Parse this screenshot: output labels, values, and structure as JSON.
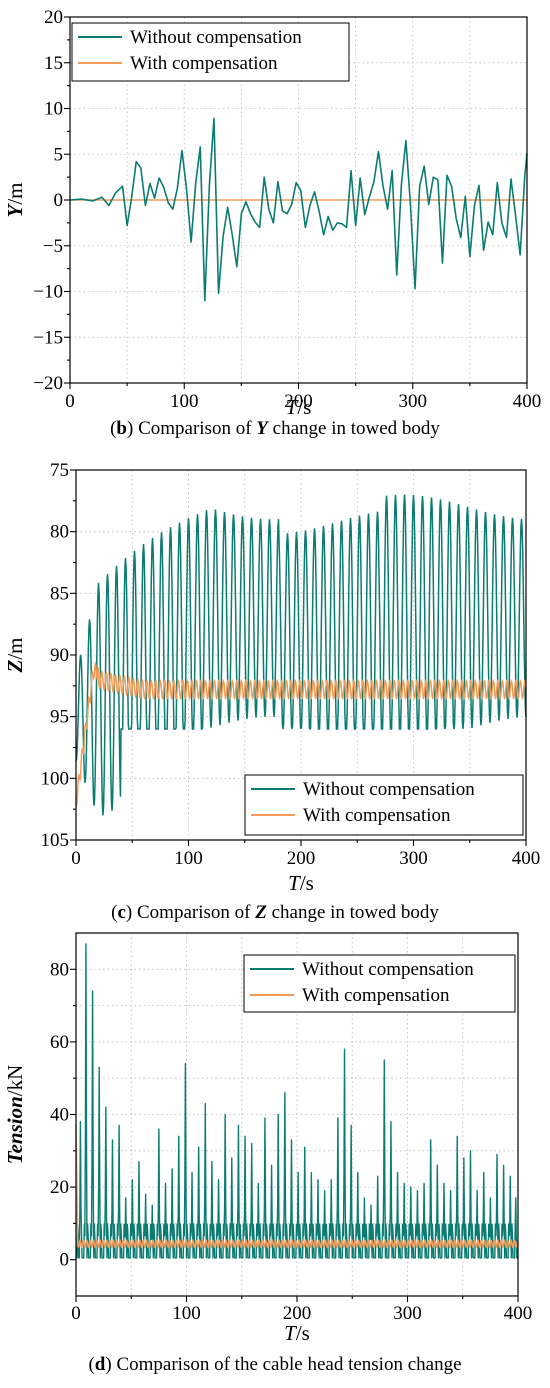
{
  "colors": {
    "without": "#0b7c72",
    "with": "#f39c5a"
  },
  "chart_data": [
    {
      "id": "b",
      "type": "line",
      "xlabel": {
        "var": "T",
        "unit": "/s"
      },
      "ylabel": {
        "var": "Y",
        "unit": "/m"
      },
      "xlim": [
        0,
        400
      ],
      "ylim": [
        -20,
        20
      ],
      "xticks": [
        0,
        100,
        200,
        300,
        400
      ],
      "yticks": [
        20,
        15,
        10,
        5,
        0,
        -5,
        -10,
        -15,
        -20
      ],
      "y_reversed": false,
      "legend": "top-left",
      "caption": {
        "letter": "b",
        "before": " Comparison of ",
        "var": "Y",
        "after": " change in towed body"
      },
      "series": [
        {
          "name": "Without compensation",
          "x": [
            0,
            10,
            20,
            28,
            34,
            40,
            46,
            50,
            54,
            58,
            62,
            66,
            70,
            74,
            78,
            82,
            86,
            90,
            94,
            98,
            102,
            106,
            110,
            114,
            118,
            122,
            126,
            130,
            134,
            138,
            142,
            146,
            150,
            154,
            158,
            162,
            166,
            170,
            174,
            178,
            182,
            186,
            190,
            194,
            198,
            202,
            206,
            210,
            214,
            218,
            222,
            226,
            230,
            234,
            238,
            242,
            246,
            250,
            254,
            258,
            262,
            266,
            270,
            274,
            278,
            282,
            286,
            290,
            294,
            298,
            302,
            306,
            310,
            314,
            318,
            322,
            326,
            330,
            334,
            338,
            342,
            346,
            350,
            354,
            358,
            362,
            366,
            370,
            374,
            378,
            382,
            386,
            390,
            394,
            398,
            400
          ],
          "y": [
            0,
            0.1,
            -0.1,
            0.3,
            -0.6,
            0.8,
            1.5,
            -2.8,
            0.3,
            4.2,
            3.5,
            -0.6,
            1.8,
            0.2,
            2.4,
            1.4,
            -0.3,
            -1.0,
            1.3,
            5.4,
            1.2,
            -4.6,
            1.8,
            5.8,
            -11.0,
            1.6,
            8.9,
            -10.2,
            -4.0,
            -0.8,
            -3.8,
            -7.3,
            -1.5,
            -0.2,
            -1.5,
            -2.4,
            -3.0,
            2.5,
            -1.0,
            -2.5,
            2.0,
            -1.2,
            -1.5,
            -0.5,
            1.9,
            1.0,
            -3.0,
            -0.6,
            0.9,
            -1.2,
            -3.8,
            -1.8,
            -3.3,
            -2.5,
            -2.6,
            -3.0,
            3.2,
            -2.8,
            2.4,
            -1.6,
            0.3,
            2.0,
            5.3,
            1.5,
            -1.0,
            3.2,
            -8.2,
            1.6,
            6.5,
            -0.5,
            -9.7,
            1.5,
            3.7,
            -0.5,
            2.5,
            2.2,
            -6.9,
            2.7,
            1.5,
            -2.0,
            -4.1,
            0.4,
            -6.2,
            -0.6,
            1.6,
            -5.5,
            -2.4,
            -3.8,
            1.9,
            -2.5,
            -4.1,
            2.3,
            -1.7,
            -6.0,
            2.5,
            5.1
          ]
        },
        {
          "name": "With compensation",
          "x": [
            0,
            400
          ],
          "y": [
            0,
            0
          ]
        }
      ]
    },
    {
      "id": "c",
      "type": "line",
      "xlabel": {
        "var": "T",
        "unit": "/s"
      },
      "ylabel": {
        "var": "Z",
        "unit": "/m"
      },
      "xlim": [
        0,
        400
      ],
      "ylim": [
        75,
        105
      ],
      "xticks": [
        0,
        100,
        200,
        300,
        400
      ],
      "yticks": [
        75,
        80,
        85,
        90,
        95,
        100,
        105
      ],
      "y_reversed": true,
      "legend": "bottom-right",
      "caption": {
        "letter": "c",
        "before": " Comparison of ",
        "var": "Z",
        "after": " change in towed body"
      },
      "oscillation": {
        "without": {
          "period_s": 8,
          "center_start": 95,
          "center_end": 87,
          "amp_start": 9,
          "amp_mid": 10,
          "peaks_min": 76,
          "troughs_max": 96
        },
        "with": {
          "period_s": 4,
          "center": 92.8,
          "amp": 0.7,
          "initial": 102,
          "settle_s": 20,
          "overshoot_min": 91.3
        }
      },
      "series": [
        {
          "name": "Without compensation"
        },
        {
          "name": "With compensation"
        }
      ]
    },
    {
      "id": "d",
      "type": "line",
      "xlabel": {
        "var": "T",
        "unit": "/s"
      },
      "ylabel": {
        "var": "Tension",
        "unit": "/kN"
      },
      "xlim": [
        0,
        400
      ],
      "ylim": [
        -10,
        90
      ],
      "xticks": [
        0,
        100,
        200,
        300,
        400
      ],
      "yticks": [
        80,
        60,
        40,
        20,
        0
      ],
      "y_reversed": false,
      "legend": "top-right",
      "caption": {
        "letter": "d",
        "before": " Comparison of the cable head tension change",
        "var": "",
        "after": ""
      },
      "spikes": {
        "x": [
          4,
          9,
          15,
          21,
          27,
          33,
          39,
          45,
          51,
          57,
          63,
          69,
          75,
          81,
          87,
          93,
          99,
          105,
          111,
          117,
          123,
          129,
          135,
          141,
          147,
          153,
          159,
          165,
          171,
          177,
          183,
          189,
          195,
          201,
          207,
          213,
          219,
          225,
          231,
          237,
          243,
          249,
          255,
          261,
          267,
          273,
          279,
          285,
          291,
          297,
          303,
          309,
          315,
          321,
          327,
          333,
          339,
          345,
          351,
          357,
          363,
          369,
          375,
          381,
          387,
          393,
          398
        ],
        "y": [
          38,
          87,
          74,
          53,
          42,
          33,
          37,
          17,
          22,
          27,
          18,
          15,
          36,
          21,
          25,
          34,
          54,
          24,
          31,
          43,
          27,
          22,
          40,
          28,
          37,
          34,
          32,
          21,
          39,
          26,
          40,
          46,
          33,
          24,
          31,
          24,
          22,
          19,
          22,
          39,
          58,
          37,
          24,
          17,
          15,
          23,
          55,
          38,
          24,
          21,
          20,
          19,
          21,
          33,
          26,
          21,
          19,
          34,
          28,
          30,
          19,
          24,
          17,
          29,
          26,
          23,
          17
        ],
        "period_s": 3,
        "baseline": 0.5
      },
      "series": [
        {
          "name": "Without compensation"
        },
        {
          "name": "With compensation",
          "base": 4.4,
          "amp": 0.9,
          "period_s": 3,
          "initial": 37
        }
      ]
    }
  ]
}
